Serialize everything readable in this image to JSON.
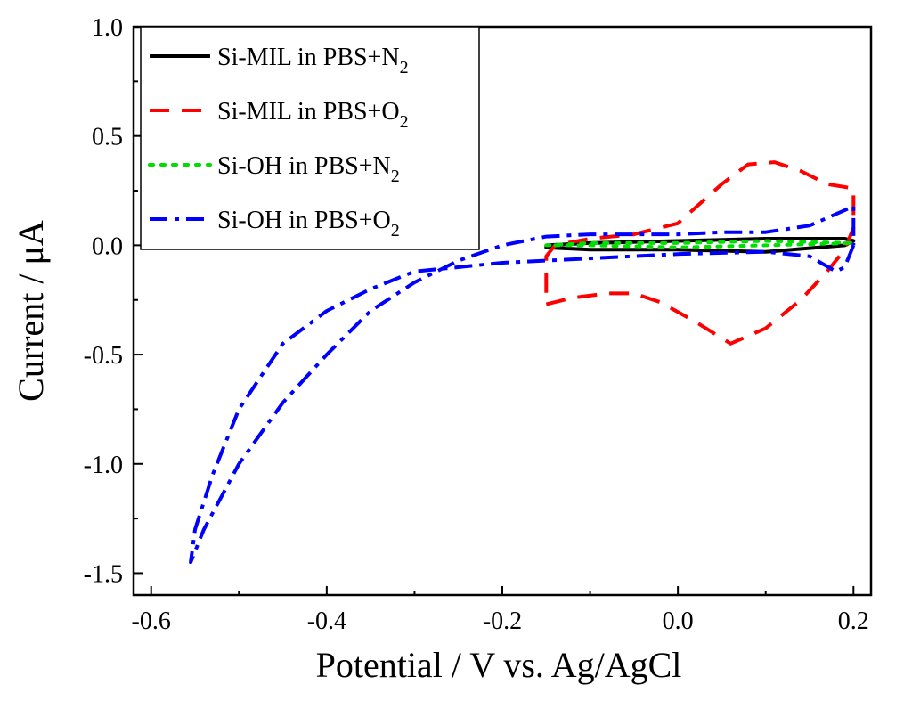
{
  "chart_data": {
    "type": "line",
    "title": "",
    "xlabel": "Potential / V vs. Ag/AgCl",
    "ylabel": "Current / μA",
    "xlim": [
      -0.62,
      0.22
    ],
    "ylim": [
      -1.6,
      1.0
    ],
    "xticks": [
      -0.6,
      -0.4,
      -0.2,
      0.0,
      0.2
    ],
    "xtick_labels": [
      "-0.6",
      "-0.4",
      "-0.2",
      "0.0",
      "0.2"
    ],
    "yticks": [
      -1.5,
      -1.0,
      -0.5,
      0.0,
      0.5,
      1.0
    ],
    "ytick_labels": [
      "-1.5",
      "-1.0",
      "-0.5",
      "0.0",
      "0.5",
      "1.0"
    ],
    "grid": false,
    "legend_position": "top-left",
    "series": [
      {
        "name": "Si-MIL in PBS+N2",
        "legend_main": "Si-MIL in PBS+N",
        "legend_sub": "2",
        "color": "#000000",
        "dash": "solid",
        "points": [
          [
            -0.15,
            0.0
          ],
          [
            -0.1,
            0.01
          ],
          [
            0.0,
            0.02
          ],
          [
            0.1,
            0.03
          ],
          [
            0.19,
            0.03
          ],
          [
            0.2,
            0.02
          ],
          [
            0.19,
            0.0
          ],
          [
            0.1,
            -0.03
          ],
          [
            0.0,
            -0.02
          ],
          [
            -0.1,
            -0.02
          ],
          [
            -0.15,
            -0.01
          ],
          [
            -0.15,
            0.0
          ]
        ]
      },
      {
        "name": "Si-MIL in PBS+O2",
        "legend_main": "Si-MIL in PBS+O",
        "legend_sub": "2",
        "color": "#ff0000",
        "dash": "dash",
        "points": [
          [
            -0.15,
            -0.27
          ],
          [
            -0.12,
            -0.24
          ],
          [
            -0.08,
            -0.22
          ],
          [
            -0.05,
            -0.22
          ],
          [
            -0.02,
            -0.26
          ],
          [
            0.02,
            -0.35
          ],
          [
            0.06,
            -0.45
          ],
          [
            0.1,
            -0.38
          ],
          [
            0.14,
            -0.25
          ],
          [
            0.17,
            -0.12
          ],
          [
            0.19,
            -0.02
          ],
          [
            0.2,
            0.08
          ],
          [
            0.2,
            0.2
          ],
          [
            0.2,
            0.26
          ],
          [
            0.17,
            0.28
          ],
          [
            0.14,
            0.34
          ],
          [
            0.11,
            0.38
          ],
          [
            0.08,
            0.37
          ],
          [
            0.05,
            0.28
          ],
          [
            0.0,
            0.1
          ],
          [
            -0.05,
            0.05
          ],
          [
            -0.1,
            0.03
          ],
          [
            -0.14,
            0.0
          ],
          [
            -0.15,
            -0.05
          ],
          [
            -0.15,
            -0.2
          ],
          [
            -0.15,
            -0.27
          ]
        ]
      },
      {
        "name": "Si-OH in PBS+N2",
        "legend_main": "Si-OH in PBS+N",
        "legend_sub": "2",
        "color": "#00dd00",
        "dash": "dot",
        "points": [
          [
            -0.15,
            0.0
          ],
          [
            -0.1,
            0.01
          ],
          [
            0.0,
            0.01
          ],
          [
            0.1,
            0.02
          ],
          [
            0.2,
            0.01
          ],
          [
            0.1,
            0.0
          ],
          [
            0.0,
            -0.01
          ],
          [
            -0.1,
            0.0
          ],
          [
            -0.15,
            0.0
          ]
        ]
      },
      {
        "name": "Si-OH in PBS+O2",
        "legend_main": "Si-OH in PBS+O",
        "legend_sub": "2",
        "color": "#0000ff",
        "dash": "dashdot",
        "points": [
          [
            0.2,
            0.0
          ],
          [
            0.19,
            -0.1
          ],
          [
            0.18,
            -0.12
          ],
          [
            0.15,
            -0.05
          ],
          [
            0.1,
            -0.03
          ],
          [
            0.0,
            -0.04
          ],
          [
            -0.1,
            -0.06
          ],
          [
            -0.2,
            -0.08
          ],
          [
            -0.3,
            -0.12
          ],
          [
            -0.35,
            -0.2
          ],
          [
            -0.4,
            -0.3
          ],
          [
            -0.45,
            -0.45
          ],
          [
            -0.5,
            -0.75
          ],
          [
            -0.53,
            -1.05
          ],
          [
            -0.55,
            -1.3
          ],
          [
            -0.555,
            -1.45
          ],
          [
            -0.54,
            -1.3
          ],
          [
            -0.5,
            -1.0
          ],
          [
            -0.45,
            -0.72
          ],
          [
            -0.4,
            -0.5
          ],
          [
            -0.35,
            -0.3
          ],
          [
            -0.3,
            -0.17
          ],
          [
            -0.25,
            -0.07
          ],
          [
            -0.2,
            0.0
          ],
          [
            -0.15,
            0.04
          ],
          [
            -0.1,
            0.05
          ],
          [
            -0.05,
            0.05
          ],
          [
            0.0,
            0.05
          ],
          [
            0.05,
            0.06
          ],
          [
            0.1,
            0.06
          ],
          [
            0.15,
            0.09
          ],
          [
            0.19,
            0.16
          ],
          [
            0.2,
            0.18
          ],
          [
            0.2,
            0.0
          ]
        ]
      }
    ]
  }
}
